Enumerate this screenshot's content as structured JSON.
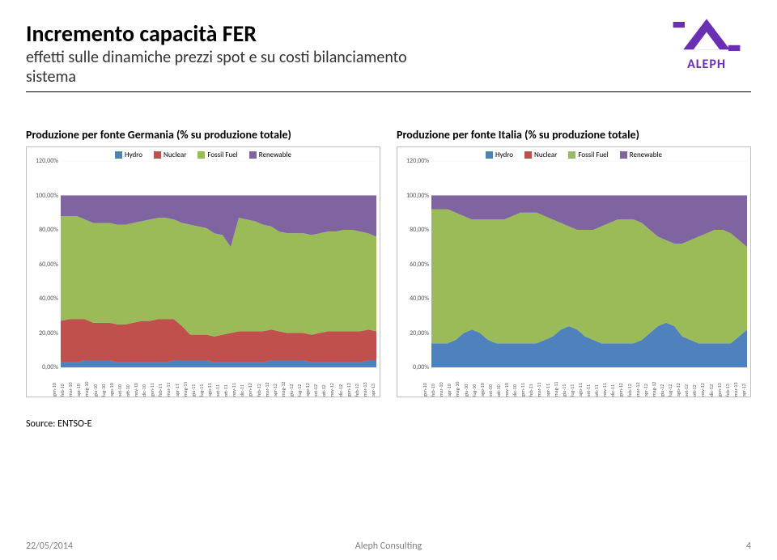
{
  "header": {
    "title": "Incremento capacità FER",
    "subtitle_line1": "effetti sulle dinamiche prezzi spot e su costi bilanciamento",
    "subtitle_line2": "sistema",
    "logo_text": "ALEPH",
    "logo_color": "#6b2fb3"
  },
  "legend": {
    "items": [
      {
        "key": "hydro",
        "label": "Hydro",
        "color": "#4f81bd"
      },
      {
        "key": "nuclear",
        "label": "Nuclear",
        "color": "#c0504d"
      },
      {
        "key": "fossil",
        "label": "Fossil Fuel",
        "color": "#9bbb59"
      },
      {
        "key": "renew",
        "label": "Renewable",
        "color": "#8064a2"
      }
    ]
  },
  "axes": {
    "ylim": [
      0,
      120
    ],
    "yticks": [
      0,
      20,
      40,
      60,
      80,
      100,
      120
    ],
    "ytick_labels": [
      "0,00%",
      "20,00%",
      "40,00%",
      "60,00%",
      "80,00%",
      "100,00%",
      "120,00%"
    ],
    "y_fontsize": 8,
    "x_fontsize": 6,
    "grid_color": "#d9d9d9",
    "border_color": "#bfbfbf"
  },
  "months": [
    "gen-10",
    "feb-10",
    "mar-10",
    "apr-10",
    "mag-10",
    "giu-10",
    "lug-10",
    "ago-10",
    "set-10",
    "ott-10",
    "nov-10",
    "dic-10",
    "gen-11",
    "feb-11",
    "mar-11",
    "apr-11",
    "mag-11",
    "giu-11",
    "lug-11",
    "ago-11",
    "set-11",
    "ott-11",
    "nov-11",
    "dic-11",
    "gen-12",
    "feb-12",
    "mar-12",
    "apr-12",
    "mag-12",
    "giu-12",
    "lug-12",
    "ago-12",
    "set-12",
    "ott-12",
    "nov-12",
    "dic-12",
    "gen-13",
    "feb-13",
    "mar-13",
    "apr-13"
  ],
  "charts": {
    "germany": {
      "title": "Produzione per fonte Germania (% su produzione totale)",
      "type": "stacked-area",
      "background_color": "#ffffff",
      "series_order": [
        "hydro",
        "nuclear",
        "fossil",
        "renew"
      ],
      "data": {
        "hydro": [
          3,
          3,
          3,
          4,
          4,
          4,
          4,
          3,
          3,
          3,
          3,
          3,
          3,
          3,
          4,
          4,
          4,
          4,
          4,
          3,
          3,
          3,
          3,
          3,
          3,
          3,
          4,
          4,
          4,
          4,
          4,
          3,
          3,
          3,
          3,
          3,
          3,
          3,
          4,
          4
        ],
        "nuclear": [
          24,
          25,
          25,
          24,
          22,
          22,
          22,
          22,
          22,
          23,
          24,
          24,
          25,
          25,
          24,
          20,
          15,
          15,
          15,
          15,
          16,
          17,
          18,
          18,
          18,
          18,
          18,
          17,
          16,
          16,
          16,
          16,
          17,
          18,
          18,
          18,
          18,
          18,
          18,
          17
        ],
        "fossil": [
          61,
          60,
          60,
          58,
          58,
          58,
          58,
          58,
          58,
          58,
          58,
          59,
          59,
          59,
          58,
          60,
          64,
          63,
          62,
          60,
          58,
          50,
          66,
          65,
          64,
          62,
          60,
          58,
          58,
          58,
          58,
          58,
          58,
          58,
          58,
          59,
          59,
          58,
          56,
          55
        ],
        "renew": [
          12,
          12,
          12,
          14,
          16,
          16,
          16,
          17,
          17,
          16,
          15,
          14,
          13,
          13,
          14,
          16,
          17,
          18,
          19,
          22,
          23,
          30,
          13,
          14,
          15,
          17,
          18,
          21,
          22,
          22,
          22,
          23,
          22,
          21,
          21,
          20,
          20,
          21,
          22,
          24
        ]
      }
    },
    "italy": {
      "title": "Produzione per fonte Italia (% su produzione totale)",
      "type": "stacked-area",
      "background_color": "#ffffff",
      "series_order": [
        "hydro",
        "nuclear",
        "fossil",
        "renew"
      ],
      "data": {
        "hydro": [
          14,
          14,
          14,
          16,
          20,
          22,
          20,
          16,
          14,
          14,
          14,
          14,
          14,
          14,
          16,
          18,
          22,
          24,
          22,
          18,
          16,
          14,
          14,
          14,
          14,
          14,
          16,
          20,
          24,
          26,
          24,
          18,
          16,
          14,
          14,
          14,
          14,
          14,
          18,
          22
        ],
        "nuclear": [
          0,
          0,
          0,
          0,
          0,
          0,
          0,
          0,
          0,
          0,
          0,
          0,
          0,
          0,
          0,
          0,
          0,
          0,
          0,
          0,
          0,
          0,
          0,
          0,
          0,
          0,
          0,
          0,
          0,
          0,
          0,
          0,
          0,
          0,
          0,
          0,
          0,
          0,
          0,
          0
        ],
        "fossil": [
          78,
          78,
          78,
          74,
          68,
          64,
          66,
          70,
          72,
          72,
          74,
          76,
          76,
          76,
          72,
          68,
          62,
          58,
          58,
          62,
          64,
          68,
          70,
          72,
          72,
          72,
          68,
          60,
          52,
          48,
          48,
          54,
          58,
          62,
          64,
          66,
          66,
          64,
          56,
          48
        ],
        "renew": [
          8,
          8,
          8,
          10,
          12,
          14,
          14,
          14,
          14,
          14,
          12,
          10,
          10,
          10,
          12,
          14,
          16,
          18,
          20,
          20,
          20,
          18,
          16,
          14,
          14,
          14,
          16,
          20,
          24,
          26,
          28,
          28,
          26,
          24,
          22,
          20,
          20,
          22,
          26,
          30
        ]
      }
    }
  },
  "source": {
    "label": "Source:",
    "value": "ENTSO-E"
  },
  "footer": {
    "date": "22/05/2014",
    "center": "Aleph Consulting",
    "page": "4"
  }
}
